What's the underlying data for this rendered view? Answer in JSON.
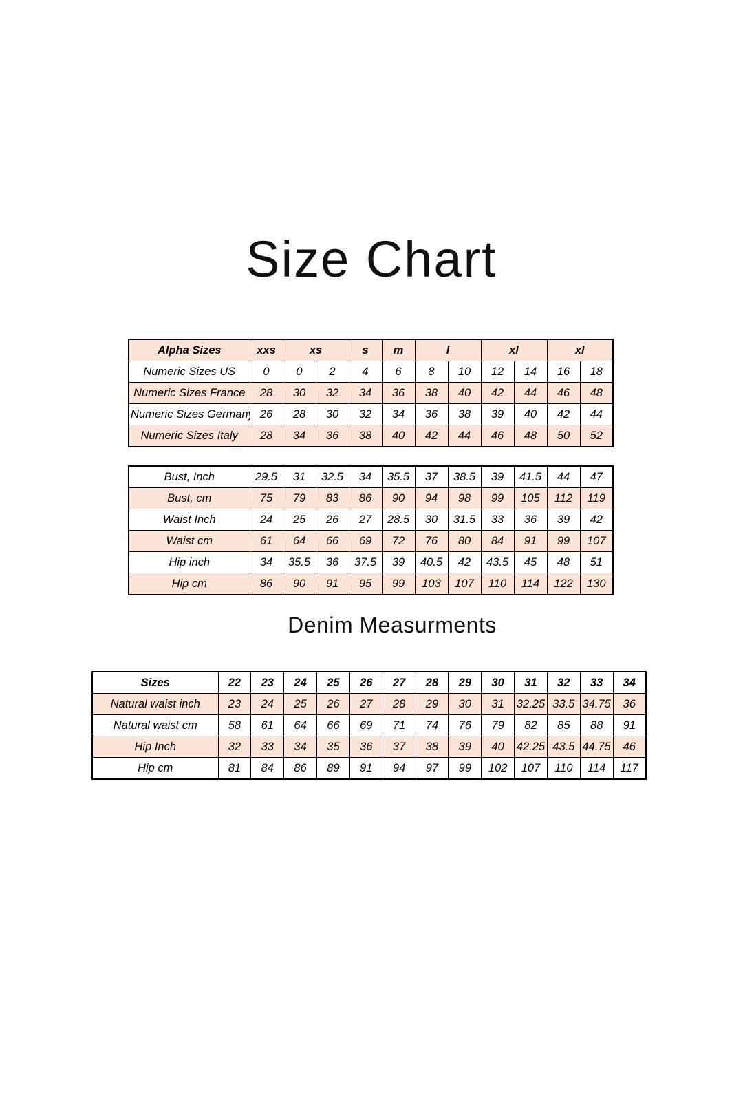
{
  "page": {
    "title": "Size Chart"
  },
  "colors": {
    "row_highlight": "#fce4d6",
    "border": "#000000",
    "background": "#ffffff",
    "text": "#000000"
  },
  "alpha_table": {
    "header": {
      "label": "Alpha Sizes",
      "groups": [
        {
          "label": "xxs",
          "span": 1
        },
        {
          "label": "xs",
          "span": 2
        },
        {
          "label": "s",
          "span": 1
        },
        {
          "label": "m",
          "span": 1
        },
        {
          "label": "l",
          "span": 2
        },
        {
          "label": "xl",
          "span": 2
        },
        {
          "label": "xl",
          "span": 2
        }
      ]
    },
    "rows": [
      {
        "label": "Numeric Sizes US",
        "shaded": false,
        "values": [
          "0",
          "0",
          "2",
          "4",
          "6",
          "8",
          "10",
          "12",
          "14",
          "16",
          "18"
        ]
      },
      {
        "label": "Numeric Sizes France",
        "shaded": true,
        "values": [
          "28",
          "30",
          "32",
          "34",
          "36",
          "38",
          "40",
          "42",
          "44",
          "46",
          "48"
        ]
      },
      {
        "label": "Numeric Sizes Germany",
        "shaded": false,
        "values": [
          "26",
          "28",
          "30",
          "32",
          "34",
          "36",
          "38",
          "39",
          "40",
          "42",
          "44"
        ]
      },
      {
        "label": "Numeric Sizes Italy",
        "shaded": true,
        "values": [
          "28",
          "34",
          "36",
          "38",
          "40",
          "42",
          "44",
          "46",
          "48",
          "50",
          "52"
        ]
      }
    ]
  },
  "measurement_table": {
    "rows": [
      {
        "label": "Bust, Inch",
        "shaded": false,
        "values": [
          "29.5",
          "31",
          "32.5",
          "34",
          "35.5",
          "37",
          "38.5",
          "39",
          "41.5",
          "44",
          "47"
        ]
      },
      {
        "label": "Bust, cm",
        "shaded": true,
        "values": [
          "75",
          "79",
          "83",
          "86",
          "90",
          "94",
          "98",
          "99",
          "105",
          "112",
          "119"
        ]
      },
      {
        "label": "Waist Inch",
        "shaded": false,
        "values": [
          "24",
          "25",
          "26",
          "27",
          "28.5",
          "30",
          "31.5",
          "33",
          "36",
          "39",
          "42"
        ]
      },
      {
        "label": "Waist cm",
        "shaded": true,
        "values": [
          "61",
          "64",
          "66",
          "69",
          "72",
          "76",
          "80",
          "84",
          "91",
          "99",
          "107"
        ]
      },
      {
        "label": "Hip inch",
        "shaded": false,
        "values": [
          "34",
          "35.5",
          "36",
          "37.5",
          "39",
          "40.5",
          "42",
          "43.5",
          "45",
          "48",
          "51"
        ]
      },
      {
        "label": "Hip cm",
        "shaded": true,
        "values": [
          "86",
          "90",
          "91",
          "95",
          "99",
          "103",
          "107",
          "110",
          "114",
          "122",
          "130"
        ]
      }
    ]
  },
  "denim_section": {
    "heading": "Denim Measurments",
    "table": {
      "header": {
        "label": "Sizes",
        "values": [
          "22",
          "23",
          "24",
          "25",
          "26",
          "27",
          "28",
          "29",
          "30",
          "31",
          "32",
          "33",
          "34"
        ]
      },
      "rows": [
        {
          "label": "Natural waist inch",
          "shaded": true,
          "values": [
            "23",
            "24",
            "25",
            "26",
            "27",
            "28",
            "29",
            "30",
            "31",
            "32.25",
            "33.5",
            "34.75",
            "36"
          ]
        },
        {
          "label": "Natural waist cm",
          "shaded": false,
          "values": [
            "58",
            "61",
            "64",
            "66",
            "69",
            "71",
            "74",
            "76",
            "79",
            "82",
            "85",
            "88",
            "91"
          ]
        },
        {
          "label": "Hip Inch",
          "shaded": true,
          "values": [
            "32",
            "33",
            "34",
            "35",
            "36",
            "37",
            "38",
            "39",
            "40",
            "42.25",
            "43.5",
            "44.75",
            "46"
          ]
        },
        {
          "label": "Hip cm",
          "shaded": false,
          "values": [
            "81",
            "84",
            "86",
            "89",
            "91",
            "94",
            "97",
            "99",
            "102",
            "107",
            "110",
            "114",
            "117"
          ]
        }
      ]
    }
  }
}
